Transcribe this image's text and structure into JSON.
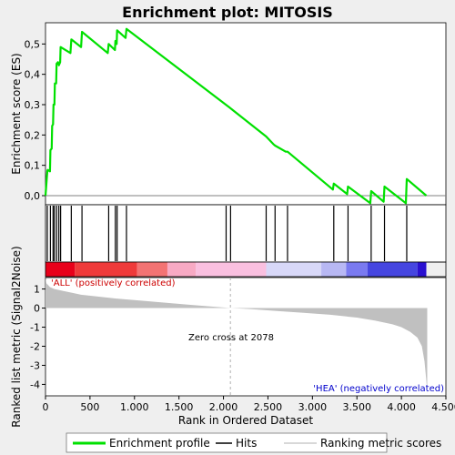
{
  "chart_data": {
    "type": "line",
    "title": "Enrichment plot: MITOSIS",
    "top_panel": {
      "ylabel": "Enrichment score (ES)",
      "ylim": [
        -0.03,
        0.57
      ],
      "yticks": [
        0.0,
        0.1,
        0.2,
        0.3,
        0.4,
        0.5
      ],
      "ytick_labels": [
        "0,0",
        "0,1",
        "0,2",
        "0,3",
        "0,4",
        "0,5"
      ],
      "series": [
        {
          "name": "Enrichment profile",
          "color": "#00e000",
          "x": [
            0,
            20,
            25,
            50,
            55,
            70,
            75,
            85,
            90,
            100,
            105,
            120,
            125,
            140,
            150,
            165,
            170,
            280,
            290,
            400,
            410,
            700,
            710,
            780,
            785,
            800,
            805,
            900,
            910,
            2070,
            2480,
            2560,
            2580,
            2700,
            2720,
            3230,
            3240,
            3390,
            3400,
            3650,
            3660,
            3800,
            3810,
            4050,
            4060,
            4280
          ],
          "y": [
            0.0,
            0.08,
            0.085,
            0.08,
            0.15,
            0.155,
            0.23,
            0.235,
            0.3,
            0.3,
            0.37,
            0.37,
            0.435,
            0.44,
            0.43,
            0.44,
            0.49,
            0.47,
            0.515,
            0.49,
            0.54,
            0.47,
            0.5,
            0.48,
            0.51,
            0.5,
            0.545,
            0.52,
            0.55,
            0.29,
            0.195,
            0.17,
            0.165,
            0.145,
            0.145,
            0.02,
            0.04,
            0.005,
            0.03,
            -0.025,
            0.015,
            -0.02,
            0.03,
            -0.025,
            0.055,
            0.0
          ]
        }
      ]
    },
    "hits": [
      20,
      55,
      85,
      100,
      125,
      150,
      170,
      290,
      410,
      710,
      785,
      805,
      910,
      2030,
      2080,
      2480,
      2580,
      2720,
      3240,
      3400,
      3660,
      3810,
      4060
    ],
    "heatmap_breaks": [
      0,
      330,
      1030,
      1370,
      1690,
      2480,
      3100,
      3380,
      3620,
      4180,
      4280
    ],
    "heatmap_colors": [
      "#e8001a",
      "#ef3a3a",
      "#f37373",
      "#f8aac4",
      "#fac0e0",
      "#d8d8f8",
      "#b8b8f4",
      "#7a7af0",
      "#4646e0",
      "#2a10d0"
    ],
    "bottom_panel": {
      "ylabel": "Ranked list metric (Signal2Noise)",
      "ylim": [
        -4.6,
        1.6
      ],
      "yticks": [
        1,
        0,
        -1,
        -2,
        -3,
        -4
      ],
      "ytick_labels": [
        "1",
        "0",
        "-1",
        "-2",
        "-3",
        "-4"
      ],
      "metric": {
        "name": "Ranking metric scores",
        "color": "#c0c0c0",
        "x": [
          0,
          10,
          50,
          100,
          200,
          300,
          400,
          600,
          800,
          1000,
          1300,
          1600,
          1900,
          2078,
          2300,
          2600,
          2900,
          3200,
          3500,
          3700,
          3900,
          4000,
          4100,
          4180,
          4230,
          4260,
          4280,
          4290
        ],
        "y": [
          1.6,
          1.3,
          1.1,
          1.0,
          0.9,
          0.8,
          0.7,
          0.6,
          0.5,
          0.42,
          0.3,
          0.18,
          0.07,
          0.0,
          -0.05,
          -0.15,
          -0.25,
          -0.35,
          -0.5,
          -0.65,
          -0.85,
          -1.0,
          -1.25,
          -1.55,
          -2.0,
          -2.8,
          -3.8,
          -4.5
        ]
      },
      "zero_cross_x": 2078,
      "zero_cross_label": "Zero cross at 2078",
      "pos_label": "'ALL' (positively correlated)",
      "neg_label": "'HEA' (negatively correlated)"
    },
    "xlabel": "Rank in Ordered Dataset",
    "xlim": [
      0,
      4500
    ],
    "xticks": [
      0,
      500,
      1000,
      1500,
      2000,
      2500,
      3000,
      3500,
      4000,
      4500
    ],
    "xtick_labels": [
      "0",
      "500",
      "1.000",
      "1.500",
      "2.000",
      "2.500",
      "3.000",
      "3.500",
      "4.000",
      "4.500"
    ],
    "legend": {
      "placement": "bottom",
      "items": [
        {
          "label": "Enrichment profile",
          "color": "#00e000"
        },
        {
          "label": "Hits",
          "color": "#000000"
        },
        {
          "label": "Ranking metric scores",
          "color": "#c0c0c0"
        }
      ]
    }
  }
}
